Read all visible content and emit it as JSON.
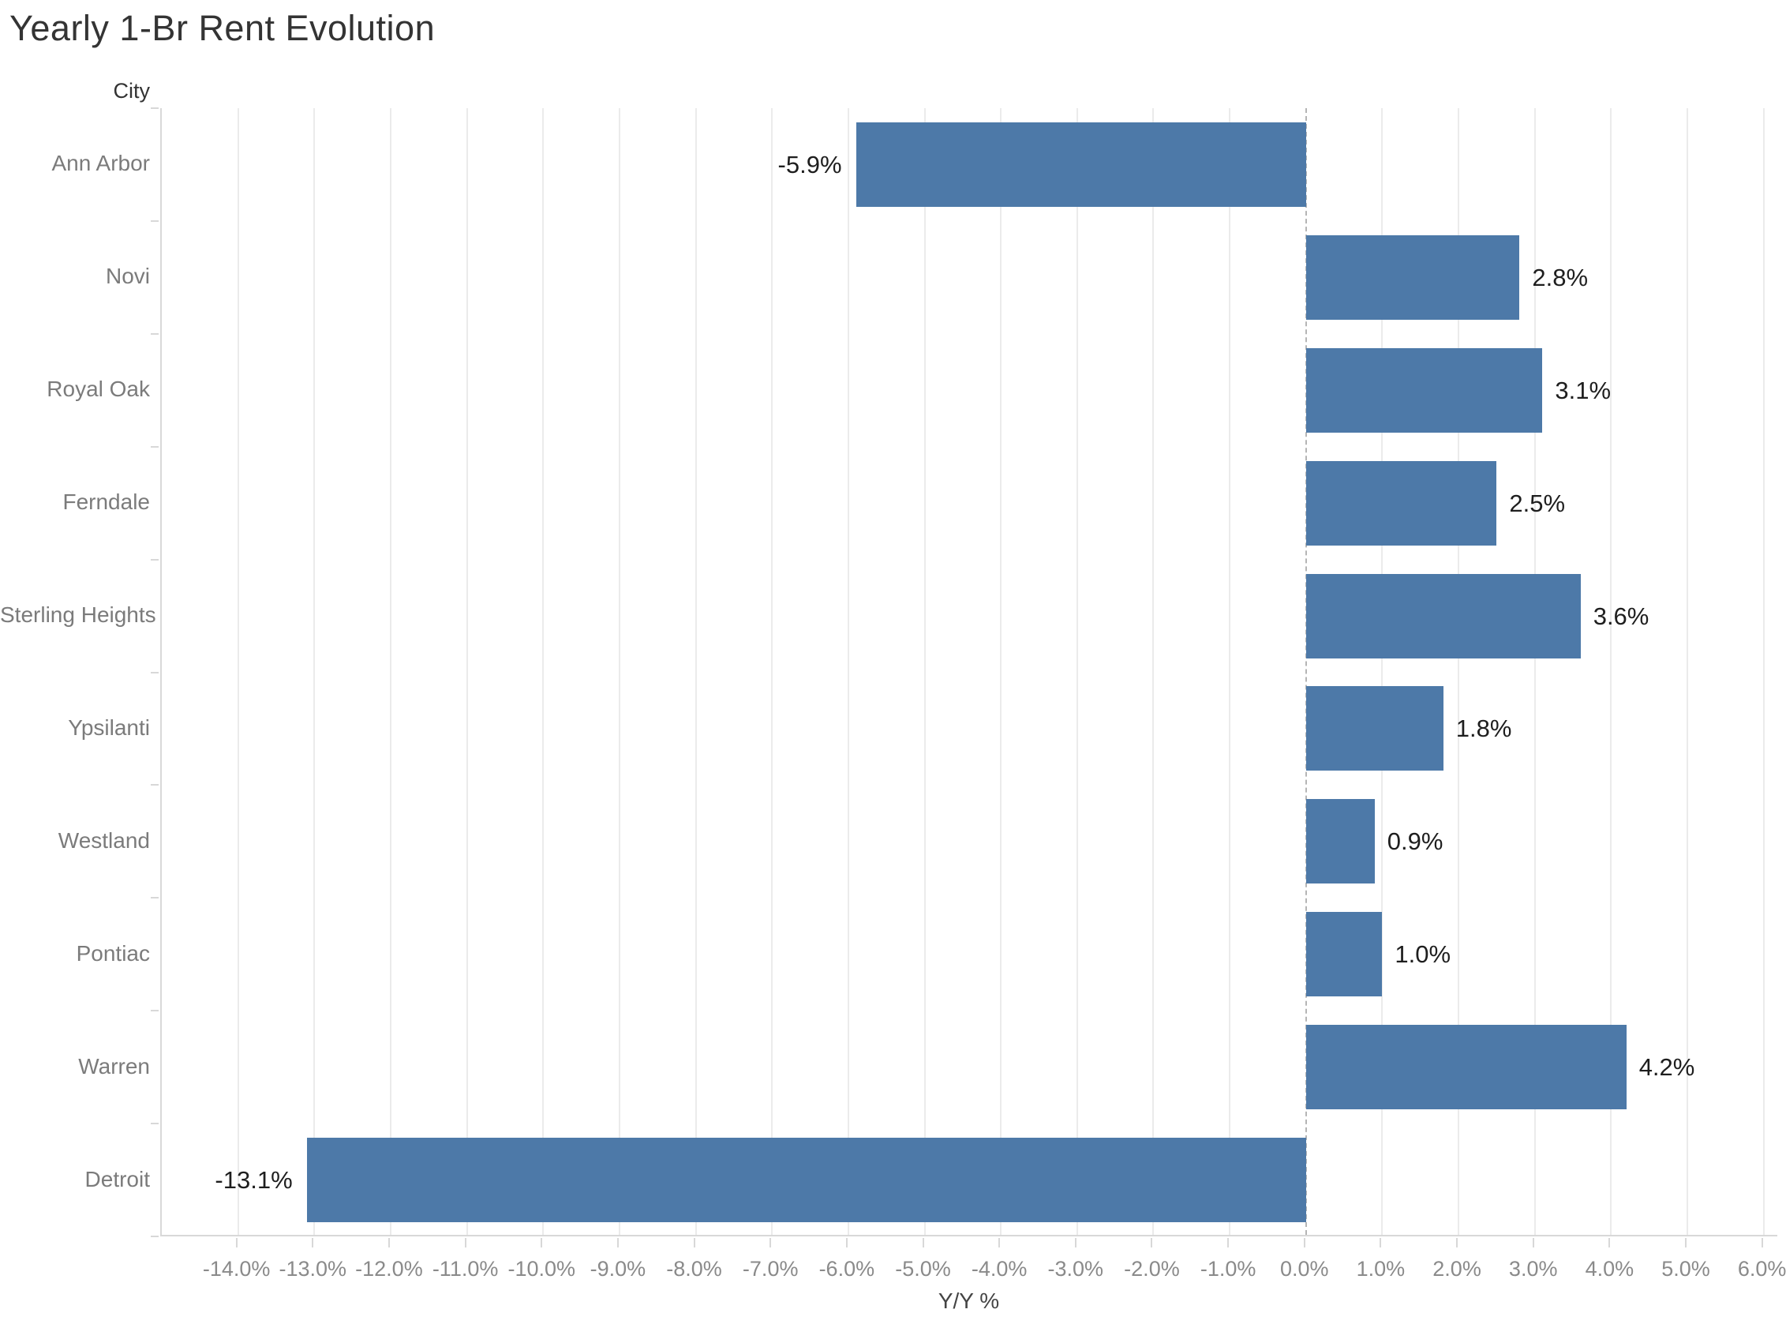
{
  "title": "Yearly 1-Br Rent Evolution",
  "chart_data": {
    "type": "bar",
    "orientation": "horizontal",
    "title": "Yearly 1-Br Rent Evolution",
    "row_header": "City",
    "xlabel": "Y/Y %",
    "categories": [
      "Ann Arbor",
      "Novi",
      "Royal Oak",
      "Ferndale",
      "Sterling Heights",
      "Ypsilanti",
      "Westland",
      "Pontiac",
      "Warren",
      "Detroit"
    ],
    "values": [
      -5.9,
      2.8,
      3.1,
      2.5,
      3.6,
      1.8,
      0.9,
      1.0,
      4.2,
      -13.1
    ],
    "value_labels": [
      "-5.9%",
      "2.8%",
      "3.1%",
      "2.5%",
      "3.6%",
      "1.8%",
      "0.9%",
      "1.0%",
      "4.2%",
      "-13.1%"
    ],
    "xlim": [
      -15.0,
      6.2
    ],
    "xticks": [
      -14,
      -13,
      -12,
      -11,
      -10,
      -9,
      -8,
      -7,
      -6,
      -5,
      -4,
      -3,
      -2,
      -1,
      0,
      1,
      2,
      3,
      4,
      5,
      6
    ],
    "xtick_labels": [
      "-14.0%",
      "-13.0%",
      "-12.0%",
      "-11.0%",
      "-10.0%",
      "-9.0%",
      "-8.0%",
      "-7.0%",
      "-6.0%",
      "-5.0%",
      "-4.0%",
      "-3.0%",
      "-2.0%",
      "-1.0%",
      "0.0%",
      "1.0%",
      "2.0%",
      "3.0%",
      "4.0%",
      "5.0%",
      "6.0%"
    ],
    "grid": "vertical-gridlines",
    "zero_line": "dashed",
    "legend": "none",
    "bar_color": "#4d79a8",
    "colors": {
      "bar": "#4d79a8",
      "title_text": "#343434",
      "header_text": "#333333",
      "category_text": "#7b7b7b",
      "tick_text": "#8a8a8a",
      "axis_title_text": "#444444",
      "value_label_text": "#1e1e1e",
      "gridline": "#ebebeb",
      "zero_line": "#b5b5b5",
      "axis_line": "#d8d8d8"
    }
  }
}
